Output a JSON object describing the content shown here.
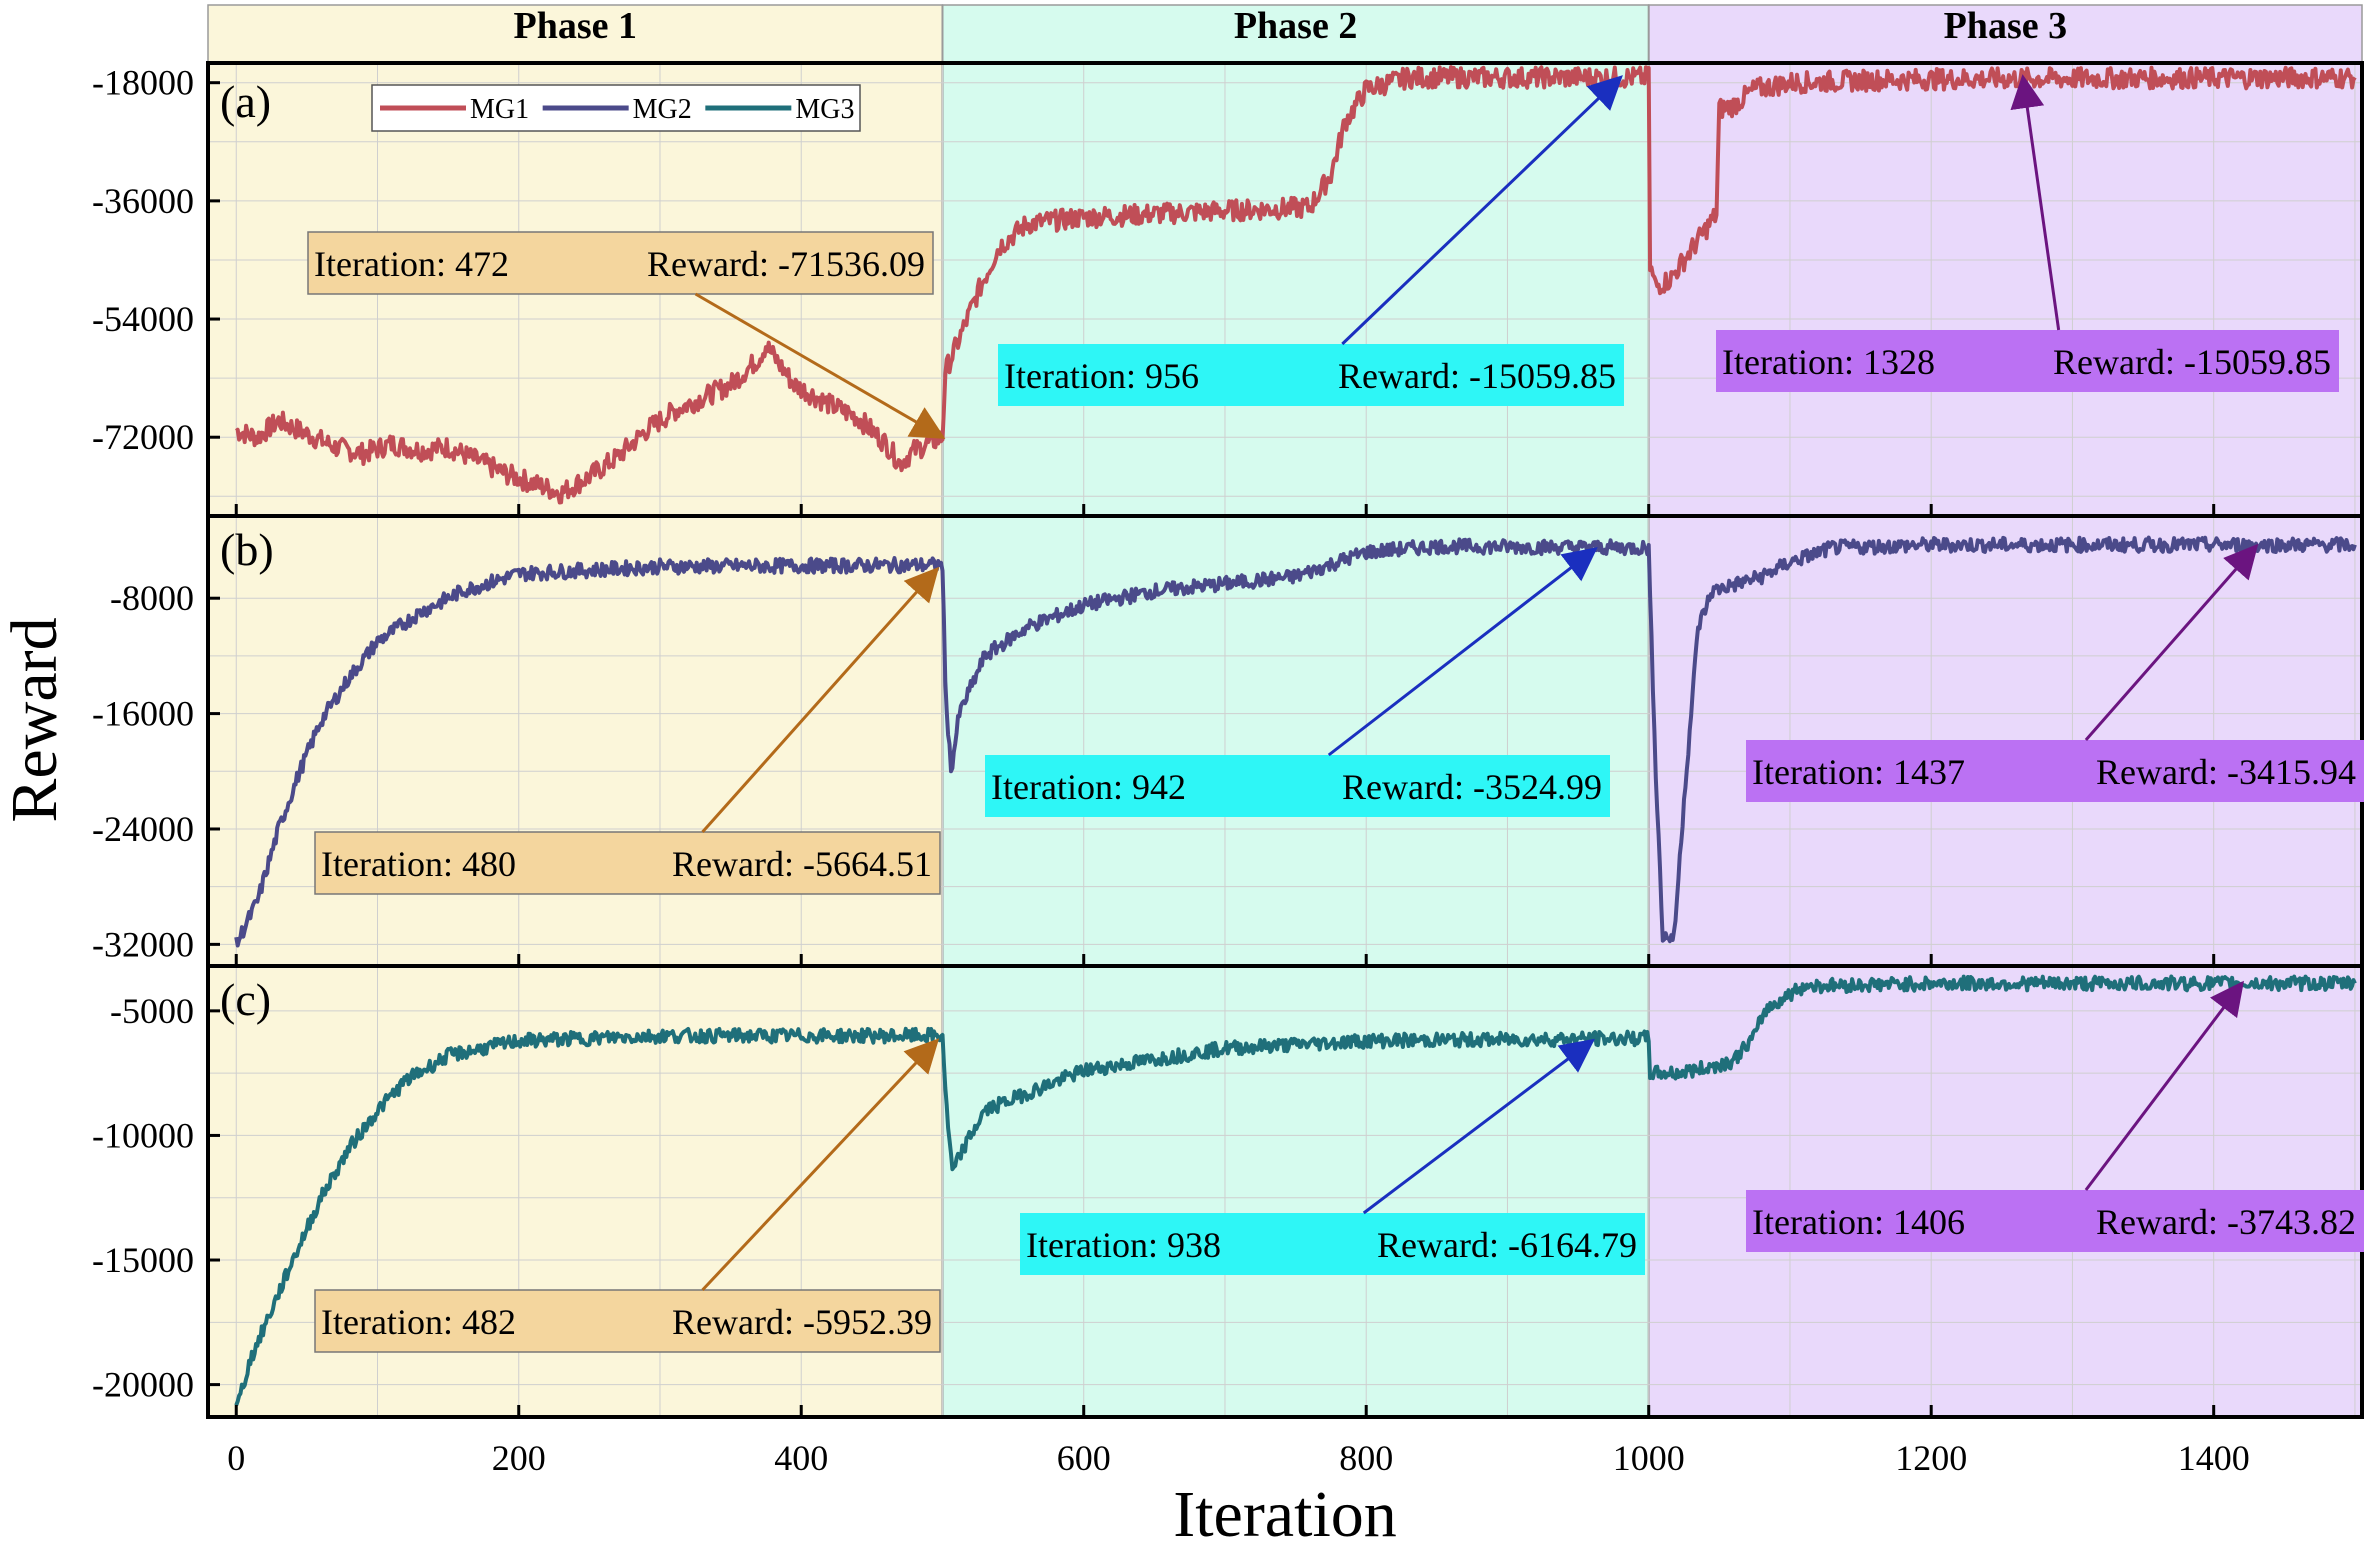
{
  "chart_data": {
    "type": "line",
    "xlabel": "Iteration",
    "ylabel": "Reward",
    "xlim": [
      -20,
      1505
    ],
    "x_ticks": [
      0,
      200,
      400,
      600,
      800,
      1000,
      1200,
      1400
    ],
    "grid": true,
    "phases": [
      {
        "label": "Phase 1",
        "range": [
          -20,
          500
        ],
        "color": "#fbf6da"
      },
      {
        "label": "Phase 2",
        "range": [
          500,
          1000
        ],
        "color": "#d6fbee"
      },
      {
        "label": "Phase 3",
        "range": [
          1000,
          1505
        ],
        "color": "#e9d9fb"
      }
    ],
    "legend": {
      "position": "top-left",
      "entries": [
        {
          "name": "MG1",
          "color": "#c04e57"
        },
        {
          "name": "MG2",
          "color": "#4b4a8a"
        },
        {
          "name": "MG3",
          "color": "#1f6f7a"
        }
      ]
    },
    "panels": [
      {
        "label": "(a)",
        "series": "MG1",
        "color": "#c04e57",
        "ylim": [
          -84000,
          -15000
        ],
        "y_ticks": [
          -18000,
          -36000,
          -54000,
          -72000
        ],
        "noise": 1600,
        "points": [
          [
            0,
            -71000
          ],
          [
            15,
            -72000
          ],
          [
            30,
            -69500
          ],
          [
            50,
            -71500
          ],
          [
            70,
            -73500
          ],
          [
            90,
            -74500
          ],
          [
            110,
            -73000
          ],
          [
            130,
            -74000
          ],
          [
            150,
            -73500
          ],
          [
            170,
            -75500
          ],
          [
            190,
            -77500
          ],
          [
            210,
            -79000
          ],
          [
            230,
            -80500
          ],
          [
            250,
            -78000
          ],
          [
            270,
            -75000
          ],
          [
            290,
            -71000
          ],
          [
            310,
            -68000
          ],
          [
            330,
            -66000
          ],
          [
            350,
            -64000
          ],
          [
            370,
            -60000
          ],
          [
            375,
            -58000
          ],
          [
            395,
            -64000
          ],
          [
            420,
            -67000
          ],
          [
            440,
            -69000
          ],
          [
            460,
            -73000
          ],
          [
            470,
            -76000
          ],
          [
            480,
            -74000
          ],
          [
            500,
            -72000
          ],
          [
            502,
            -62000
          ],
          [
            510,
            -58000
          ],
          [
            525,
            -50000
          ],
          [
            540,
            -43000
          ],
          [
            560,
            -39500
          ],
          [
            600,
            -38500
          ],
          [
            700,
            -37500
          ],
          [
            760,
            -37000
          ],
          [
            775,
            -32000
          ],
          [
            785,
            -24000
          ],
          [
            800,
            -19000
          ],
          [
            830,
            -17200
          ],
          [
            1000,
            -17200
          ],
          [
            1001,
            -46000
          ],
          [
            1005,
            -49000
          ],
          [
            1015,
            -48000
          ],
          [
            1035,
            -42000
          ],
          [
            1048,
            -38000
          ],
          [
            1050,
            -22000
          ],
          [
            1060,
            -21500
          ],
          [
            1075,
            -19000
          ],
          [
            1100,
            -18000
          ],
          [
            1160,
            -17600
          ],
          [
            1230,
            -17400
          ],
          [
            1500,
            -17200
          ]
        ],
        "annotations": [
          {
            "iteration": "Iteration: 472",
            "reward": "Reward: -71536.09",
            "box_color": "#f4d69e",
            "arrow_color": "#b36a1a",
            "target": [
              500,
              -72000
            ]
          },
          {
            "iteration": "Iteration: 956",
            "reward": "Reward: -15059.85",
            "box_color": "#2ef6f6",
            "arrow_color": "#1a2fbf",
            "target": [
              980,
              -17200
            ]
          },
          {
            "iteration": "Iteration: 1328",
            "reward": "Reward: -15059.85",
            "box_color": "#bb71f3",
            "arrow_color": "#6b1480",
            "target": [
              1265,
              -17200
            ]
          }
        ]
      },
      {
        "label": "(b)",
        "series": "MG2",
        "color": "#4b4a8a",
        "ylim": [
          -33500,
          -2300
        ],
        "y_ticks": [
          -8000,
          -16000,
          -24000,
          -32000
        ],
        "noise": 500,
        "points": [
          [
            0,
            -32000
          ],
          [
            15,
            -29000
          ],
          [
            30,
            -24000
          ],
          [
            45,
            -20000
          ],
          [
            60,
            -16500
          ],
          [
            80,
            -13500
          ],
          [
            100,
            -11000
          ],
          [
            130,
            -9000
          ],
          [
            160,
            -7500
          ],
          [
            200,
            -6300
          ],
          [
            300,
            -5800
          ],
          [
            498,
            -5700
          ],
          [
            500,
            -5700
          ],
          [
            502,
            -14000
          ],
          [
            506,
            -20000
          ],
          [
            512,
            -16000
          ],
          [
            530,
            -12000
          ],
          [
            560,
            -10000
          ],
          [
            600,
            -8500
          ],
          [
            650,
            -7500
          ],
          [
            700,
            -7000
          ],
          [
            750,
            -6500
          ],
          [
            800,
            -4800
          ],
          [
            850,
            -4400
          ],
          [
            1000,
            -4500
          ],
          [
            1001,
            -8000
          ],
          [
            1005,
            -20000
          ],
          [
            1010,
            -31500
          ],
          [
            1018,
            -31500
          ],
          [
            1025,
            -22000
          ],
          [
            1035,
            -10000
          ],
          [
            1045,
            -7500
          ],
          [
            1080,
            -6500
          ],
          [
            1100,
            -5500
          ],
          [
            1130,
            -4500
          ],
          [
            1200,
            -4300
          ],
          [
            1500,
            -4300
          ]
        ],
        "annotations": [
          {
            "iteration": "Iteration: 480",
            "reward": "Reward: -5664.51",
            "box_color": "#f4d69e",
            "arrow_color": "#b36a1a",
            "target": [
              496,
              -6000
            ]
          },
          {
            "iteration": "Iteration: 942",
            "reward": "Reward: -3524.99",
            "box_color": "#2ef6f6",
            "arrow_color": "#1a2fbf",
            "target": [
              962,
              -4600
            ]
          },
          {
            "iteration": "Iteration: 1437",
            "reward": "Reward: -3415.94",
            "box_color": "#bb71f3",
            "arrow_color": "#6b1480",
            "target": [
              1430,
              -4400
            ]
          }
        ]
      },
      {
        "label": "(c)",
        "series": "MG3",
        "color": "#1f6f7a",
        "ylim": [
          -21300,
          -3200
        ],
        "y_ticks": [
          -5000,
          -10000,
          -15000,
          -20000
        ],
        "noise": 280,
        "points": [
          [
            0,
            -21000
          ],
          [
            10,
            -19000
          ],
          [
            25,
            -17000
          ],
          [
            40,
            -15000
          ],
          [
            60,
            -12500
          ],
          [
            80,
            -10500
          ],
          [
            100,
            -9000
          ],
          [
            120,
            -7800
          ],
          [
            150,
            -6800
          ],
          [
            200,
            -6200
          ],
          [
            300,
            -6000
          ],
          [
            498,
            -6000
          ],
          [
            500,
            -6000
          ],
          [
            503,
            -9000
          ],
          [
            507,
            -11500
          ],
          [
            515,
            -10500
          ],
          [
            530,
            -9000
          ],
          [
            560,
            -8300
          ],
          [
            600,
            -7400
          ],
          [
            700,
            -6500
          ],
          [
            800,
            -6200
          ],
          [
            1000,
            -6100
          ],
          [
            1001,
            -7500
          ],
          [
            1020,
            -7500
          ],
          [
            1040,
            -7300
          ],
          [
            1060,
            -7000
          ],
          [
            1075,
            -6000
          ],
          [
            1082,
            -5000
          ],
          [
            1095,
            -4500
          ],
          [
            1110,
            -4000
          ],
          [
            1200,
            -3900
          ],
          [
            1500,
            -3900
          ]
        ],
        "annotations": [
          {
            "iteration": "Iteration: 482",
            "reward": "Reward: -5952.39",
            "box_color": "#f4d69e",
            "arrow_color": "#b36a1a",
            "target": [
              496,
              -6200
            ]
          },
          {
            "iteration": "Iteration: 938",
            "reward": "Reward: -6164.79",
            "box_color": "#2ef6f6",
            "arrow_color": "#1a2fbf",
            "target": [
              960,
              -6200
            ]
          },
          {
            "iteration": "Iteration: 1406",
            "reward": "Reward: -3743.82",
            "box_color": "#bb71f3",
            "arrow_color": "#6b1480",
            "target": [
              1420,
              -3900
            ]
          }
        ]
      }
    ]
  }
}
